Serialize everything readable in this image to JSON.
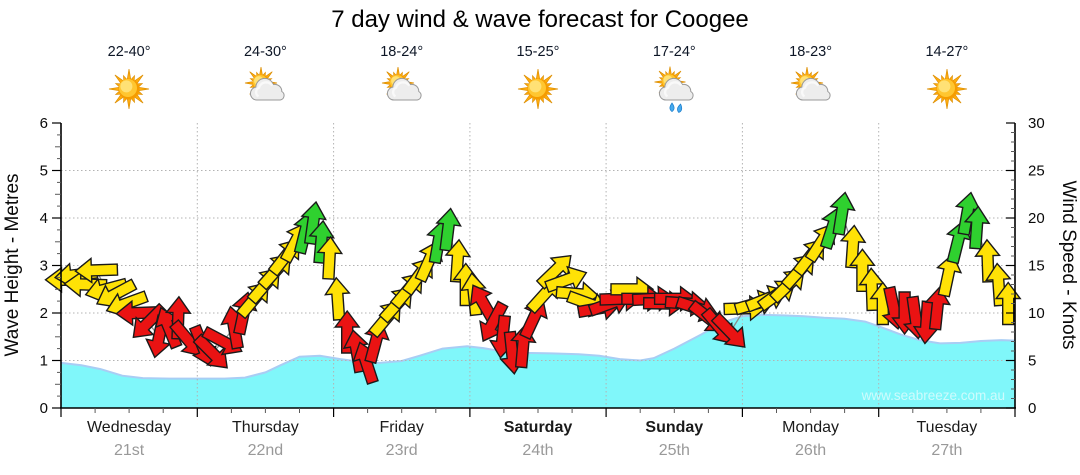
{
  "title": "7 day wind & wave forecast for Coogee",
  "watermark": "www.seabreeze.com.au",
  "days": [
    {
      "name": "Wednesday",
      "date": "21st",
      "temp": "22-40°",
      "icon": "sun",
      "bold": false
    },
    {
      "name": "Thursday",
      "date": "22nd",
      "temp": "24-30°",
      "icon": "sun-cloud",
      "bold": false
    },
    {
      "name": "Friday",
      "date": "23rd",
      "temp": "18-24°",
      "icon": "sun-cloud",
      "bold": false
    },
    {
      "name": "Saturday",
      "date": "24th",
      "temp": "15-25°",
      "icon": "sun",
      "bold": true
    },
    {
      "name": "Sunday",
      "date": "25th",
      "temp": "17-24°",
      "icon": "sun-cloud-rain",
      "bold": true
    },
    {
      "name": "Monday",
      "date": "26th",
      "temp": "18-23°",
      "icon": "sun-cloud",
      "bold": false
    },
    {
      "name": "Tuesday",
      "date": "27th",
      "temp": "14-27°",
      "icon": "sun",
      "bold": false
    }
  ],
  "axes": {
    "left_title": "Wave Height - Metres",
    "left_ticks": [
      0,
      1,
      2,
      3,
      4,
      5,
      6
    ],
    "left_ylim": [
      0,
      6
    ],
    "right_title": "Wind Speed - Knots",
    "right_ticks": [
      0,
      5,
      10,
      15,
      20,
      25,
      30
    ],
    "right_ylim": [
      0,
      30
    ]
  },
  "chart_data": {
    "type": "area+wind-arrows",
    "title": "7 day wind & wave forecast for Coogee",
    "x_categories": [
      "Wednesday 21st",
      "Thursday 22nd",
      "Friday 23rd",
      "Saturday 24th",
      "Sunday 25th",
      "Monday 26th",
      "Tuesday 27th"
    ],
    "grid": "dotted, horizontal every 1 m / 5 kt, vertical at day boundaries",
    "wave_height_format": "[day_offset_0to7, metres]",
    "wave_height_m": [
      [
        0,
        0.95
      ],
      [
        0.15,
        0.9
      ],
      [
        0.29,
        0.82
      ],
      [
        0.45,
        0.68
      ],
      [
        0.6,
        0.63
      ],
      [
        0.8,
        0.62
      ],
      [
        1.0,
        0.62
      ],
      [
        1.2,
        0.62
      ],
      [
        1.35,
        0.64
      ],
      [
        1.5,
        0.75
      ],
      [
        1.61,
        0.9
      ],
      [
        1.75,
        1.08
      ],
      [
        1.9,
        1.1
      ],
      [
        2.05,
        1.03
      ],
      [
        2.2,
        0.97
      ],
      [
        2.34,
        0.95
      ],
      [
        2.5,
        0.99
      ],
      [
        2.63,
        1.1
      ],
      [
        2.8,
        1.25
      ],
      [
        2.98,
        1.3
      ],
      [
        3.1,
        1.26
      ],
      [
        3.22,
        1.2
      ],
      [
        3.4,
        1.16
      ],
      [
        3.6,
        1.15
      ],
      [
        3.8,
        1.13
      ],
      [
        3.95,
        1.1
      ],
      [
        4.1,
        1.03
      ],
      [
        4.25,
        1.0
      ],
      [
        4.35,
        1.05
      ],
      [
        4.5,
        1.25
      ],
      [
        4.7,
        1.55
      ],
      [
        4.85,
        1.8
      ],
      [
        5.0,
        1.93
      ],
      [
        5.15,
        1.96
      ],
      [
        5.3,
        1.95
      ],
      [
        5.45,
        1.93
      ],
      [
        5.6,
        1.9
      ],
      [
        5.75,
        1.88
      ],
      [
        5.9,
        1.82
      ],
      [
        6.0,
        1.72
      ],
      [
        6.16,
        1.55
      ],
      [
        6.3,
        1.43
      ],
      [
        6.45,
        1.36
      ],
      [
        6.6,
        1.37
      ],
      [
        6.75,
        1.41
      ],
      [
        6.9,
        1.43
      ],
      [
        7.0,
        1.42
      ]
    ],
    "wind_arrows_format": "[day_offset_0to7, knots, bearing_deg_0isUp, color y|r|g]",
    "wind_arrows": [
      [
        0.04,
        13.5,
        270,
        "y"
      ],
      [
        0.11,
        14,
        263,
        "y"
      ],
      [
        0.18,
        13,
        272,
        "y"
      ],
      [
        0.26,
        14.5,
        268,
        "y"
      ],
      [
        0.33,
        12.5,
        255,
        "y"
      ],
      [
        0.4,
        12,
        242,
        "y"
      ],
      [
        0.48,
        11,
        250,
        "y"
      ],
      [
        0.56,
        10,
        268,
        "r"
      ],
      [
        0.64,
        9,
        225,
        "r"
      ],
      [
        0.72,
        7.5,
        192,
        "r"
      ],
      [
        0.79,
        8.5,
        338,
        "r"
      ],
      [
        0.86,
        9.5,
        2,
        "r"
      ],
      [
        0.93,
        7.2,
        140,
        "r"
      ],
      [
        1.04,
        6.5,
        158,
        "r"
      ],
      [
        1.11,
        5.8,
        135,
        "r"
      ],
      [
        1.19,
        7,
        118,
        "r"
      ],
      [
        1.27,
        8.5,
        350,
        "r"
      ],
      [
        1.34,
        10,
        12,
        "r"
      ],
      [
        1.42,
        11.5,
        40,
        "y"
      ],
      [
        1.5,
        13,
        41,
        "y"
      ],
      [
        1.58,
        14.5,
        42,
        "y"
      ],
      [
        1.65,
        16,
        38,
        "y"
      ],
      [
        1.72,
        17.5,
        28,
        "y"
      ],
      [
        1.79,
        18.5,
        14,
        "g"
      ],
      [
        1.85,
        19.5,
        8,
        "g"
      ],
      [
        1.91,
        17.5,
        5,
        "g"
      ],
      [
        1.97,
        15.8,
        3,
        "y"
      ],
      [
        2.03,
        11.5,
        356,
        "y"
      ],
      [
        2.1,
        8,
        0,
        "r"
      ],
      [
        2.17,
        6,
        350,
        "r"
      ],
      [
        2.24,
        4.8,
        342,
        "r"
      ],
      [
        2.31,
        7,
        15,
        "r"
      ],
      [
        2.39,
        9.5,
        40,
        "y"
      ],
      [
        2.47,
        11,
        42,
        "y"
      ],
      [
        2.55,
        12.5,
        40,
        "y"
      ],
      [
        2.63,
        14,
        36,
        "y"
      ],
      [
        2.7,
        15.5,
        24,
        "y"
      ],
      [
        2.77,
        17.5,
        10,
        "g"
      ],
      [
        2.84,
        18.8,
        7,
        "g"
      ],
      [
        2.91,
        15.5,
        4,
        "y"
      ],
      [
        2.97,
        13,
        0,
        "y"
      ],
      [
        3.03,
        12,
        354,
        "y"
      ],
      [
        3.1,
        11,
        330,
        "r"
      ],
      [
        3.17,
        9,
        208,
        "r"
      ],
      [
        3.24,
        7.5,
        186,
        "r"
      ],
      [
        3.31,
        5.8,
        174,
        "r"
      ],
      [
        3.39,
        6.5,
        5,
        "r"
      ],
      [
        3.47,
        9.5,
        25,
        "r"
      ],
      [
        3.55,
        12,
        42,
        "y"
      ],
      [
        3.63,
        14.5,
        46,
        "y"
      ],
      [
        3.71,
        13.5,
        70,
        "y"
      ],
      [
        3.79,
        12,
        95,
        "y"
      ],
      [
        3.87,
        11,
        110,
        "y"
      ],
      [
        3.95,
        10.5,
        80,
        "r"
      ],
      [
        4.03,
        11,
        70,
        "r"
      ],
      [
        4.11,
        11.5,
        88,
        "r"
      ],
      [
        4.19,
        12.5,
        90,
        "y"
      ],
      [
        4.27,
        11.5,
        90,
        "r"
      ],
      [
        4.35,
        11.5,
        87,
        "r"
      ],
      [
        4.43,
        11,
        91,
        "r"
      ],
      [
        4.51,
        11.5,
        90,
        "r"
      ],
      [
        4.59,
        11,
        94,
        "r"
      ],
      [
        4.67,
        10.5,
        108,
        "r"
      ],
      [
        4.75,
        9.5,
        128,
        "r"
      ],
      [
        4.83,
        8.5,
        140,
        "r"
      ],
      [
        4.91,
        8,
        136,
        "r"
      ],
      [
        5.02,
        10.5,
        88,
        "y"
      ],
      [
        5.1,
        11,
        74,
        "y"
      ],
      [
        5.18,
        11.5,
        68,
        "y"
      ],
      [
        5.26,
        12,
        54,
        "y"
      ],
      [
        5.34,
        13,
        46,
        "y"
      ],
      [
        5.42,
        14.5,
        42,
        "y"
      ],
      [
        5.5,
        16,
        38,
        "y"
      ],
      [
        5.58,
        17.5,
        33,
        "y"
      ],
      [
        5.66,
        19,
        18,
        "g"
      ],
      [
        5.73,
        20.5,
        9,
        "g"
      ],
      [
        5.81,
        17,
        4,
        "y"
      ],
      [
        5.88,
        14.5,
        0,
        "y"
      ],
      [
        5.95,
        12.5,
        358,
        "y"
      ],
      [
        6.03,
        11,
        0,
        "y"
      ],
      [
        6.11,
        10.5,
        168,
        "r"
      ],
      [
        6.19,
        10,
        180,
        "r"
      ],
      [
        6.27,
        9.5,
        172,
        "r"
      ],
      [
        6.35,
        9,
        184,
        "r"
      ],
      [
        6.43,
        10.5,
        6,
        "r"
      ],
      [
        6.51,
        14,
        12,
        "y"
      ],
      [
        6.58,
        17.5,
        14,
        "g"
      ],
      [
        6.65,
        20.5,
        10,
        "g"
      ],
      [
        6.72,
        19,
        4,
        "g"
      ],
      [
        6.8,
        15.5,
        358,
        "y"
      ],
      [
        6.88,
        13,
        356,
        "y"
      ],
      [
        6.95,
        11,
        0,
        "y"
      ]
    ],
    "colors": {
      "wave_fill": "#80F7FA",
      "wave_edge": "#A9CDF4",
      "arrow_yellow": "#FFE206",
      "arrow_red": "#EA1313",
      "arrow_green": "#2FD12F",
      "grid": "#B3B3B3",
      "axis": "#000000",
      "temp_text": "#0D1626",
      "date_text": "#999999",
      "day_text": "#1A1A1A"
    }
  }
}
